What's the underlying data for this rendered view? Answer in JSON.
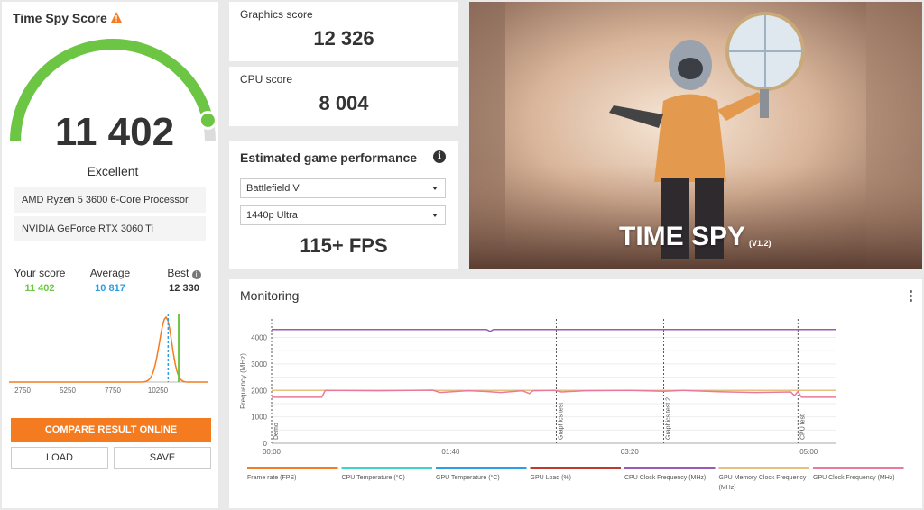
{
  "score_panel": {
    "title": "Time Spy Score",
    "score": "11 402",
    "rating": "Excellent",
    "cpu_name": "AMD Ryzen 5 3600 6-Core Processor",
    "gpu_name": "NVIDIA GeForce RTX 3060 Ti",
    "gauge_fraction": 0.93,
    "comparison": {
      "your_label": "Your score",
      "your_value": "11 402",
      "avg_label": "Average",
      "avg_value": "10 817",
      "best_label": "Best",
      "best_value": "12 330"
    },
    "compare_button": "COMPARE RESULT ONLINE",
    "load_button": "LOAD",
    "save_button": "SAVE"
  },
  "distribution_chart": {
    "type": "line",
    "x_ticks": [
      "2750",
      "5250",
      "7750",
      "10250"
    ],
    "x_range": [
      2000,
      13000
    ],
    "your_score": 11402,
    "average_score": 10817
  },
  "graphics": {
    "label": "Graphics score",
    "value": "12 326"
  },
  "cpu": {
    "label": "CPU score",
    "value": "8 004"
  },
  "estimate": {
    "title": "Estimated game performance",
    "game": "Battlefield V",
    "preset": "1440p Ultra",
    "fps": "115+ FPS"
  },
  "banner": {
    "title": "TIME SPY",
    "version": "(V1.2)"
  },
  "monitoring": {
    "title": "Monitoring",
    "chart_data": {
      "type": "line",
      "ylabel": "Frequency (MHz)",
      "y_ticks": [
        "4000",
        "3000",
        "2000",
        "1000",
        "0"
      ],
      "ylim": [
        0,
        4700
      ],
      "x_ticks": [
        "00:00",
        "01:40",
        "03:20",
        "05:00"
      ],
      "x_ticks_seconds": [
        0,
        100,
        200,
        300
      ],
      "xlim": [
        0,
        315
      ],
      "markers": [
        {
          "label": "Demo",
          "t": 0
        },
        {
          "label": "Graphics test",
          "t": 159
        },
        {
          "label": "Graphics test 2",
          "t": 219
        },
        {
          "label": "CPU test",
          "t": 294
        }
      ],
      "series": [
        {
          "name": "CPU Clock Frequency (MHz)",
          "color": "#9b59b6",
          "points": [
            [
              0,
              4300
            ],
            [
              120,
              4300
            ],
            [
              122,
              4230
            ],
            [
              124,
              4300
            ],
            [
              315,
              4300
            ]
          ]
        },
        {
          "name": "GPU Memory Clock Frequency (MHz)",
          "color": "#e8c07d",
          "points": [
            [
              0,
              2000
            ],
            [
              315,
              2000
            ]
          ]
        },
        {
          "name": "GPU Clock Frequency (MHz)",
          "color": "#e87a9a",
          "points": [
            [
              0,
              1740
            ],
            [
              28,
              1740
            ],
            [
              30,
              2000
            ],
            [
              60,
              1990
            ],
            [
              90,
              2010
            ],
            [
              94,
              1920
            ],
            [
              110,
              1990
            ],
            [
              120,
              1960
            ],
            [
              128,
              1920
            ],
            [
              140,
              1990
            ],
            [
              144,
              1880
            ],
            [
              146,
              1990
            ],
            [
              158,
              2000
            ],
            [
              162,
              1940
            ],
            [
              175,
              1990
            ],
            [
              200,
              2000
            ],
            [
              219,
              1970
            ],
            [
              230,
              2000
            ],
            [
              250,
              1950
            ],
            [
              270,
              1920
            ],
            [
              290,
              1940
            ],
            [
              292,
              1800
            ],
            [
              294,
              1960
            ],
            [
              296,
              1740
            ],
            [
              315,
              1740
            ]
          ]
        }
      ],
      "legend": [
        {
          "name": "Frame rate (FPS)",
          "color": "#f47b20"
        },
        {
          "name": "CPU Temperature (°C)",
          "color": "#3dd6c6"
        },
        {
          "name": "GPU Temperature (°C)",
          "color": "#2b9fe3"
        },
        {
          "name": "GPU Load (%)",
          "color": "#c0392b"
        },
        {
          "name": "CPU Clock Frequency (MHz)",
          "color": "#9b59b6"
        },
        {
          "name": "GPU Memory Clock Frequency (MHz)",
          "color": "#e8c07d"
        },
        {
          "name": "GPU Clock Frequency (MHz)",
          "color": "#e87a9a"
        }
      ]
    }
  },
  "colors": {
    "accent_orange": "#f47b20",
    "gauge_green": "#6cc644",
    "your_score_green": "#6cc644",
    "average_blue": "#2b9fe3"
  }
}
